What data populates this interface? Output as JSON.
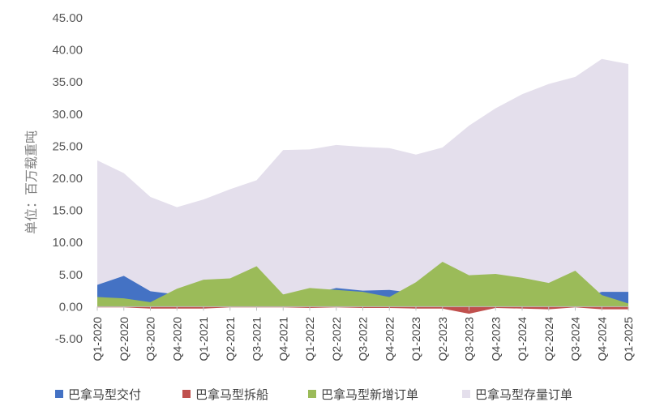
{
  "chart_data": {
    "type": "area",
    "ylabel": "单位：百万载重吨",
    "xlabel": "",
    "ylim": [
      -5,
      45
    ],
    "yticks": [
      "-5.00",
      "0.00",
      "5.00",
      "10.00",
      "15.00",
      "20.00",
      "25.00",
      "30.00",
      "35.00",
      "40.00",
      "45.00"
    ],
    "categories": [
      "Q1-2020",
      "Q2-2020",
      "Q3-2020",
      "Q4-2020",
      "Q1-2021",
      "Q2-2021",
      "Q3-2021",
      "Q4-2021",
      "Q1-2022",
      "Q2-2022",
      "Q3-2022",
      "Q4-2022",
      "Q1-2023",
      "Q2-2023",
      "Q3-2023",
      "Q4-2023",
      "Q1-2024",
      "Q2-2024",
      "Q3-2024",
      "Q4-2024",
      "Q1-2025"
    ],
    "grid": false,
    "legend_position": "bottom",
    "series": [
      {
        "name": "巴拿马型交付",
        "color": "#4472C4",
        "values": [
          3.4,
          4.8,
          2.4,
          1.9,
          1.9,
          1.9,
          1.6,
          1.9,
          1.9,
          2.9,
          2.5,
          2.6,
          2.1,
          1.1,
          1.3,
          1.3,
          1.6,
          1.5,
          1.0,
          2.3,
          2.3
        ]
      },
      {
        "name": "巴拿马型拆船",
        "color": "#C0504D",
        "values": [
          -0.1,
          -0.1,
          -0.3,
          -0.3,
          -0.3,
          -0.1,
          -0.1,
          -0.1,
          -0.2,
          -0.1,
          -0.2,
          -0.2,
          -0.3,
          -0.3,
          -1.1,
          -0.2,
          -0.3,
          -0.4,
          -0.1,
          -0.4,
          -0.4
        ]
      },
      {
        "name": "巴拿马型新增订单",
        "color": "#9BBB59",
        "values": [
          1.5,
          1.3,
          0.7,
          2.8,
          4.2,
          4.4,
          6.3,
          1.9,
          2.9,
          2.6,
          2.3,
          1.5,
          3.8,
          7.0,
          4.9,
          5.1,
          4.5,
          3.7,
          5.6,
          1.8,
          0.5
        ]
      },
      {
        "name": "巴拿马型存量订单",
        "color": "#E4DFEC",
        "values": [
          22.8,
          20.8,
          17.1,
          15.5,
          16.7,
          18.3,
          19.7,
          24.4,
          24.5,
          25.2,
          24.9,
          24.7,
          23.7,
          24.8,
          28.2,
          30.9,
          33.1,
          34.7,
          35.8,
          38.6,
          37.8
        ]
      }
    ]
  }
}
